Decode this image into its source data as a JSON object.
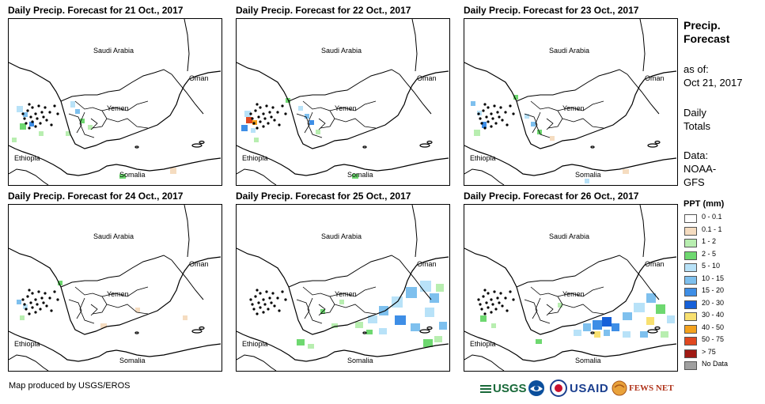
{
  "panels": [
    {
      "title": "Daily Precip. Forecast for 21 Oct., 2017"
    },
    {
      "title": "Daily Precip. Forecast for 22 Oct., 2017"
    },
    {
      "title": "Daily Precip. Forecast for 23 Oct., 2017"
    },
    {
      "title": "Daily Precip. Forecast for 24 Oct., 2017"
    },
    {
      "title": "Daily Precip. Forecast for 25 Oct., 2017"
    },
    {
      "title": "Daily Precip. Forecast for 26 Oct., 2017"
    }
  ],
  "map_labels": {
    "saudi_arabia": "Saudi Arabia",
    "oman": "Oman",
    "yemen": "Yemen",
    "ethiopia": "Ethiopia",
    "somalia": "Somalia"
  },
  "sidebar": {
    "title_line1": "Precip.",
    "title_line2": "Forecast",
    "asof_line1": "as of:",
    "asof_line2": "Oct 21, 2017",
    "totals_line1": "Daily",
    "totals_line2": "Totals",
    "data_line1": "Data:",
    "data_line2": "NOAA-",
    "data_line3": "GFS"
  },
  "legend": {
    "title": "PPT (mm)",
    "items": [
      {
        "label": "0 - 0.1",
        "color": "#ffffff"
      },
      {
        "label": "0.1 - 1",
        "color": "#f5dcc0"
      },
      {
        "label": "1 - 2",
        "color": "#b8eeb0"
      },
      {
        "label": "2 - 5",
        "color": "#6ed870"
      },
      {
        "label": "5 - 10",
        "color": "#b8e2f8"
      },
      {
        "label": "10 - 15",
        "color": "#7ec0ee"
      },
      {
        "label": "15 - 20",
        "color": "#3e8ee6"
      },
      {
        "label": "20 - 30",
        "color": "#1660d8"
      },
      {
        "label": "30 - 40",
        "color": "#f8e070"
      },
      {
        "label": "40 - 50",
        "color": "#f4a21e"
      },
      {
        "label": "50 - 75",
        "color": "#e04820"
      },
      {
        "label": "> 75",
        "color": "#a01a14"
      },
      {
        "label": "No Data",
        "color": "#a0a0a0"
      }
    ]
  },
  "footer": {
    "credit": "Map produced by USGS/EROS"
  },
  "logos": {
    "usgs": "USGS",
    "usaid": "USAID",
    "fews": "FEWS NET"
  }
}
